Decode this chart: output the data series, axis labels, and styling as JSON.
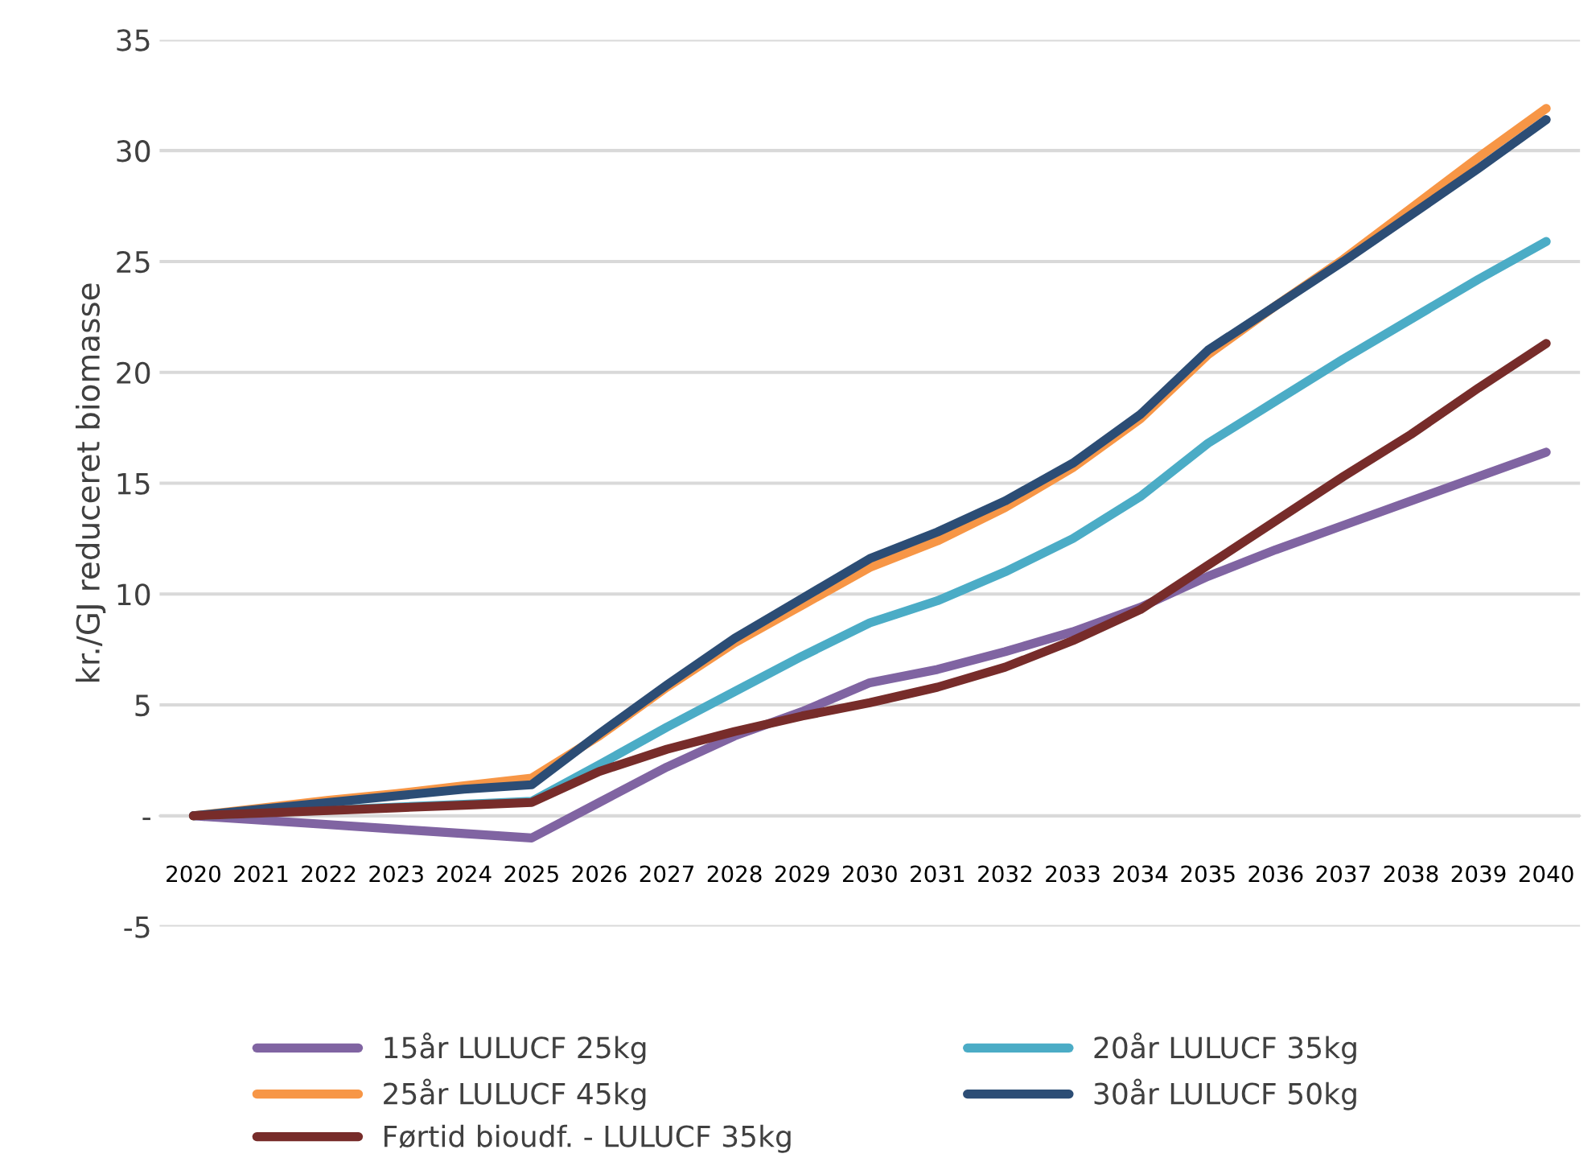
{
  "chart_data": {
    "type": "line",
    "ylabel": "kr./GJ reduceret biomasse",
    "categories": [
      "2020",
      "2021",
      "2022",
      "2023",
      "2024",
      "2025",
      "2026",
      "2027",
      "2028",
      "2029",
      "2030",
      "2031",
      "2032",
      "2033",
      "2034",
      "2035",
      "2036",
      "2037",
      "2038",
      "2039",
      "2040"
    ],
    "series": [
      {
        "name": "15år LULUCF 25kg",
        "color": "#8064a2",
        "values": [
          0,
          -0.2,
          -0.4,
          -0.6,
          -0.8,
          -1.0,
          0.6,
          2.2,
          3.6,
          4.7,
          6.0,
          6.6,
          7.4,
          8.3,
          9.4,
          10.8,
          12.0,
          13.1,
          14.2,
          15.3,
          16.4
        ]
      },
      {
        "name": "20år LULUCF 35kg",
        "color": "#4bacc6",
        "values": [
          0,
          0.13,
          0.26,
          0.39,
          0.52,
          0.65,
          2.3,
          4.0,
          5.6,
          7.2,
          8.7,
          9.7,
          11.0,
          12.5,
          14.4,
          16.8,
          18.7,
          20.6,
          22.4,
          24.2,
          25.9
        ]
      },
      {
        "name": "25år LULUCF 45kg",
        "color": "#f79646",
        "values": [
          0,
          0.35,
          0.7,
          1.0,
          1.35,
          1.7,
          3.6,
          5.8,
          7.8,
          9.5,
          11.2,
          12.4,
          13.9,
          15.7,
          17.9,
          20.8,
          23.0,
          25.1,
          27.4,
          29.7,
          31.9
        ]
      },
      {
        "name": "30år LULUCF 50kg",
        "color": "#2c4d75",
        "values": [
          0,
          0.3,
          0.6,
          0.9,
          1.2,
          1.4,
          3.7,
          5.9,
          8.0,
          9.8,
          11.6,
          12.8,
          14.2,
          15.9,
          18.1,
          21.0,
          23.0,
          25.0,
          27.1,
          29.2,
          31.4
        ]
      },
      {
        "name": "Førtid bioudf. - LULUCF 35kg",
        "color": "#772c2a",
        "values": [
          0,
          0.12,
          0.24,
          0.36,
          0.48,
          0.6,
          2.0,
          3.0,
          3.8,
          4.5,
          5.1,
          5.8,
          6.7,
          7.9,
          9.3,
          11.3,
          13.3,
          15.3,
          17.2,
          19.3,
          21.3
        ]
      }
    ],
    "ylim": [
      -5,
      35
    ],
    "yticks": [
      -5,
      {
        "value": 0,
        "label": "-"
      },
      5,
      10,
      15,
      20,
      25,
      30,
      35
    ],
    "grid": "y",
    "legend": "bottom",
    "marker": "none",
    "line_style": "solid"
  }
}
